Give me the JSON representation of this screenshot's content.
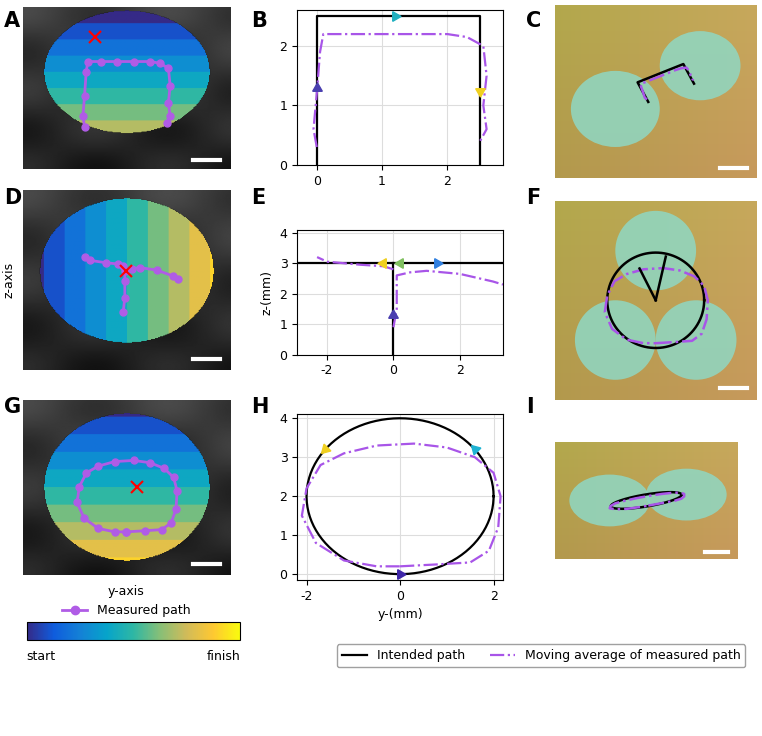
{
  "panel_labels": [
    "A",
    "B",
    "C",
    "D",
    "E",
    "F",
    "G",
    "H",
    "I"
  ],
  "left_column": {
    "y_label": "z-axis",
    "x_label": "y-axis",
    "legend_entry": "Measured path",
    "marker_color": "#b05ce6",
    "colorbar": {
      "start_label": "start",
      "finish_label": "finish"
    }
  },
  "chart_data": [
    {
      "type": "line",
      "xlim": [
        -0.3,
        2.85
      ],
      "ylim": [
        0,
        2.6
      ],
      "xticks": [
        0,
        1,
        2
      ],
      "yticks": [
        0,
        1,
        2
      ],
      "grid": true,
      "legend": "lower center",
      "series": [
        {
          "name": "Intended path",
          "color": "#000000",
          "line_style": "solid",
          "x": [
            0,
            0,
            2.5,
            2.5
          ],
          "values": [
            0,
            2.5,
            2.5,
            0
          ]
        },
        {
          "name": "Moving average of measured path",
          "color": "#a855e8",
          "line_style": "dashdot",
          "x": [
            0.0,
            -0.05,
            0.0,
            0.05,
            0.1,
            0.5,
            1.0,
            1.5,
            2.0,
            2.3,
            2.55,
            2.6,
            2.55,
            2.6,
            2.5
          ],
          "values": [
            0.3,
            0.6,
            1.2,
            1.9,
            2.2,
            2.2,
            2.2,
            2.2,
            2.2,
            2.15,
            2.0,
            1.5,
            1.0,
            0.6,
            0.4
          ]
        }
      ],
      "direction_markers": [
        {
          "x": 0,
          "y": 1.3,
          "direction": "up",
          "color": "#4a3fb0"
        },
        {
          "x": 1.2,
          "y": 2.5,
          "direction": "right",
          "color": "#20b0c0"
        },
        {
          "x": 2.5,
          "y": 1.25,
          "direction": "down",
          "color": "#f0d020"
        }
      ]
    },
    {
      "type": "line",
      "xlim": [
        -2.9,
        3.3
      ],
      "ylim": [
        0,
        4.1
      ],
      "xticks": [
        -2,
        0,
        2
      ],
      "yticks": [
        0,
        1,
        2,
        3,
        4
      ],
      "grid": true,
      "y_label": "z-(mm)",
      "series": [
        {
          "name": "Intended path",
          "color": "#000000",
          "line_style": "solid",
          "x": [
            0,
            0,
            null,
            -2.9,
            3.3
          ],
          "values": [
            0,
            3,
            null,
            3,
            3
          ]
        },
        {
          "name": "Moving average of measured path",
          "color": "#a855e8",
          "line_style": "dashdot",
          "x": [
            0.0,
            0.1,
            0.1,
            0.1,
            0.5,
            1.0,
            2.0,
            3.0,
            3.3,
            null,
            0.0,
            -0.3,
            -1.0,
            -2.0,
            -2.3
          ],
          "values": [
            0.9,
            1.5,
            2.2,
            2.6,
            2.7,
            2.75,
            2.65,
            2.4,
            2.3,
            null,
            2.8,
            2.9,
            2.95,
            3.05,
            3.2
          ]
        }
      ],
      "direction_markers": [
        {
          "x": 0,
          "y": 1.3,
          "direction": "up",
          "color": "#4a3fb0"
        },
        {
          "x": -0.3,
          "y": 3,
          "direction": "left",
          "color": "#f0d020"
        },
        {
          "x": 0.2,
          "y": 3,
          "direction": "left",
          "color": "#80c060"
        },
        {
          "x": 1.3,
          "y": 3,
          "direction": "right",
          "color": "#3080e0"
        }
      ]
    },
    {
      "type": "line",
      "xlim": [
        -2.2,
        2.2
      ],
      "ylim": [
        -0.15,
        4.1
      ],
      "xticks": [
        -2,
        0,
        2
      ],
      "yticks": [
        0,
        1,
        2,
        3,
        4
      ],
      "grid": true,
      "x_label": "y-(mm)",
      "series": [
        {
          "name": "Intended path",
          "color": "#000000",
          "line_style": "solid",
          "circle": {
            "center": [
              0,
              2
            ],
            "radius": 2
          }
        },
        {
          "name": "Moving average of measured path",
          "color": "#a855e8",
          "line_style": "dashdot",
          "x": [
            0.0,
            0.8,
            1.5,
            1.9,
            2.1,
            2.15,
            2.0,
            1.6,
            1.0,
            0.3,
            -0.5,
            -1.2,
            -1.7,
            -2.0,
            -2.1,
            -1.8,
            -1.2,
            -0.5,
            0.0
          ],
          "values": [
            0.2,
            0.25,
            0.3,
            0.6,
            1.2,
            2.0,
            2.6,
            3.0,
            3.25,
            3.35,
            3.3,
            3.1,
            2.8,
            2.2,
            1.5,
            0.8,
            0.35,
            0.2,
            0.2
          ]
        }
      ],
      "direction_markers": [
        {
          "x": 0,
          "y": 0,
          "direction": "right",
          "color": "#3e26a8"
        },
        {
          "x": 1.6,
          "y": 3.2,
          "direction": "up_left",
          "color": "#1fb3d3"
        },
        {
          "x": -1.6,
          "y": 3.2,
          "direction": "down_left",
          "color": "#f0d020"
        }
      ]
    }
  ]
}
